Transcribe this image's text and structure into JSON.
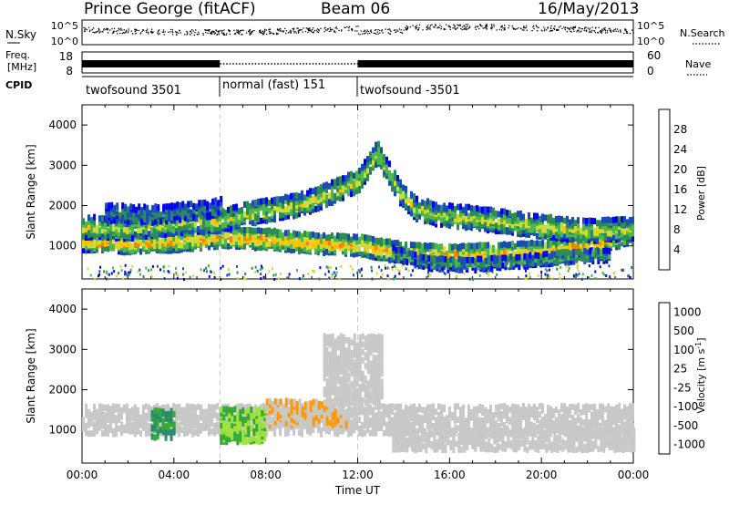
{
  "header": {
    "station": "Prince George (fitACF)",
    "beam": "Beam 06",
    "date": "16/May/2013"
  },
  "noise_panel": {
    "left_label": "N.Sky",
    "right_label": "N.Search",
    "right_line_style": "dotted",
    "left_ticks": [
      "10^5",
      "10^0"
    ],
    "right_ticks": [
      "10^5",
      "10^0"
    ]
  },
  "freq_panel": {
    "left_label_line1": "Freq.",
    "left_label_line2": "[MHz]",
    "right_label": "Nave",
    "right_line_style": "dotted",
    "left_ticks": [
      "18",
      "8"
    ],
    "right_ticks": [
      "60",
      "0"
    ]
  },
  "cpid": {
    "label": "CPID",
    "segments": [
      {
        "name": "twofsound 3501",
        "start_hour": 0,
        "end_hour": 6
      },
      {
        "name": "normal (fast) 151",
        "start_hour": 6,
        "end_hour": 12
      },
      {
        "name": "twofsound -3501",
        "start_hour": 12,
        "end_hour": 24
      }
    ]
  },
  "chart_data": [
    {
      "type": "heatmap",
      "title": "",
      "xlabel": "",
      "ylabel": "Slant Range [km]",
      "xlim_hours": [
        0,
        24
      ],
      "ylim": [
        180,
        4500
      ],
      "yticks": [
        1000,
        2000,
        3000,
        4000
      ],
      "colorbar": {
        "label": "Power [dB]",
        "range": [
          0,
          32
        ],
        "ticks": [
          "4",
          "8",
          "12",
          "16",
          "20",
          "24",
          "28"
        ],
        "colors": [
          "#0000ee",
          "#1a4db3",
          "#2e8b57",
          "#4db84d",
          "#cddc39",
          "#ffc000",
          "#ff8000",
          "#ff3000"
        ]
      },
      "echo_bands": [
        {
          "points": [
            [
              0,
              1200
            ],
            [
              2,
              1150
            ],
            [
              4,
              1200
            ],
            [
              6,
              1300
            ],
            [
              8,
              1250
            ],
            [
              10,
              1150
            ],
            [
              12,
              1100
            ],
            [
              13,
              1000
            ],
            [
              14,
              900
            ],
            [
              16,
              850
            ],
            [
              18,
              900
            ],
            [
              20,
              950
            ],
            [
              22,
              1100
            ],
            [
              24,
              1400
            ]
          ],
          "width": 220,
          "level": 24
        },
        {
          "points": [
            [
              0,
              1550
            ],
            [
              2,
              1500
            ],
            [
              4,
              1650
            ],
            [
              6,
              1700
            ],
            [
              7,
              1850
            ],
            [
              8,
              1950
            ],
            [
              9,
              2050
            ],
            [
              10,
              2200
            ],
            [
              11,
              2450
            ],
            [
              12,
              2700
            ],
            [
              12.5,
              3100
            ],
            [
              12.8,
              3400
            ],
            [
              13.2,
              3000
            ],
            [
              13.8,
              2400
            ],
            [
              14.5,
              2000
            ],
            [
              15.5,
              1850
            ],
            [
              16.5,
              1800
            ],
            [
              18,
              1700
            ],
            [
              20,
              1550
            ],
            [
              22,
              1450
            ],
            [
              24,
              1500
            ]
          ],
          "width": 240,
          "level": 18
        },
        {
          "points": [
            [
              1,
              1900
            ],
            [
              3,
              1850
            ],
            [
              5,
              1950
            ],
            [
              6,
              2050
            ]
          ],
          "width": 180,
          "level": 10
        },
        {
          "points": [
            [
              13.5,
              900
            ],
            [
              15,
              650
            ],
            [
              17,
              620
            ],
            [
              19,
              700
            ],
            [
              21,
              800
            ],
            [
              23,
              850
            ]
          ],
          "width": 130,
          "level": 12
        }
      ]
    },
    {
      "type": "heatmap",
      "title": "",
      "xlabel": "Time UT",
      "ylabel": "Slant Range [km]",
      "xlim_hours": [
        0,
        24
      ],
      "ylim": [
        180,
        4500
      ],
      "yticks": [
        1000,
        2000,
        3000,
        4000
      ],
      "xticks": [
        "00:00",
        "04:00",
        "08:00",
        "12:00",
        "16:00",
        "20:00",
        "00:00"
      ],
      "colorbar": {
        "label": "Velocity [m s⁻¹]",
        "range": [
          -1000,
          1000
        ],
        "ticks": [
          "1000",
          "500",
          "100",
          "25",
          "-25",
          "-100",
          "-500",
          "-1000"
        ],
        "colors": [
          "#1a33cc",
          "#2a8a6a",
          "#33aa33",
          "#a0e040",
          "#c8c8c8",
          "#c8c8c8",
          "#ff9900",
          "#ff6600",
          "#ff2200"
        ]
      },
      "regions": [
        {
          "t": [
            0,
            24
          ],
          "range": [
            1000,
            1700
          ],
          "velocity": 0
        },
        {
          "t": [
            6,
            8
          ],
          "range": [
            800,
            1600
          ],
          "velocity": -300
        },
        {
          "t": [
            8,
            11.5
          ],
          "range": [
            1200,
            1800
          ],
          "velocity": 300
        },
        {
          "t": [
            3,
            4
          ],
          "range": [
            900,
            1600
          ],
          "velocity": -600
        },
        {
          "t": [
            10.5,
            13
          ],
          "range": [
            1700,
            3400
          ],
          "velocity": 0
        },
        {
          "t": [
            13.5,
            24
          ],
          "range": [
            600,
            1100
          ],
          "velocity": 0
        }
      ]
    }
  ],
  "colorbar_labels": {
    "power": "Power [dB]",
    "velocity_prefix": "Velocity [m s",
    "velocity_exp": "-1",
    "velocity_suffix": "]"
  }
}
